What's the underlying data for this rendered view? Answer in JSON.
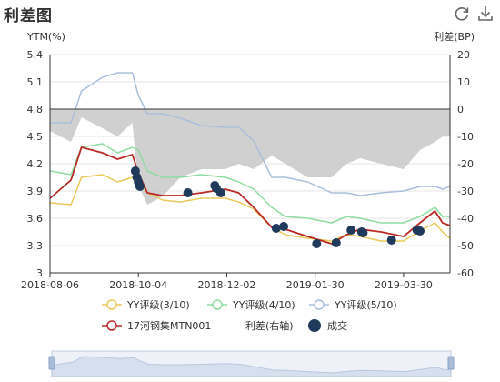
{
  "title": "利差图",
  "toolbar": {
    "refresh_icon": "refresh-icon",
    "download_icon": "download-icon"
  },
  "colors": {
    "yy3": "#e8c95a",
    "yy4": "#8fdca0",
    "yy5": "#aabfdc",
    "bond": "#b92b27",
    "spread": "#c8c8c8",
    "trade": "#1f3a5a"
  },
  "chart_data": {
    "type": "line",
    "title": "",
    "ylabel": "YTM(%)",
    "y2label": "利差(BP)",
    "ylim": [
      3,
      5.4
    ],
    "y2lim": [
      -60,
      20
    ],
    "yticks": [
      "5.4",
      "5.1",
      "4.8",
      "4.5",
      "4.2",
      "3.9",
      "3.6",
      "3.3",
      "3"
    ],
    "y2ticks": [
      "20",
      "10",
      "0",
      "-10",
      "-20",
      "-30",
      "-40",
      "-50",
      "-60"
    ],
    "x_start": "2018-08-06",
    "x_end": "2019-04-30",
    "xticks": [
      "2018-08-06",
      "2018-10-04",
      "2018-12-02",
      "2019-01-30",
      "2019-03-30"
    ],
    "series": [
      {
        "name": "YY评级(3/10)",
        "color": "#e8c95a",
        "points": [
          [
            "2018-08-06",
            3.77
          ],
          [
            "2018-08-20",
            3.75
          ],
          [
            "2018-08-27",
            4.05
          ],
          [
            "2018-09-10",
            4.08
          ],
          [
            "2018-09-20",
            4.0
          ],
          [
            "2018-09-30",
            4.05
          ],
          [
            "2018-10-04",
            4.02
          ],
          [
            "2018-10-10",
            3.88
          ],
          [
            "2018-10-20",
            3.8
          ],
          [
            "2018-11-01",
            3.78
          ],
          [
            "2018-11-15",
            3.82
          ],
          [
            "2018-12-01",
            3.82
          ],
          [
            "2018-12-10",
            3.78
          ],
          [
            "2018-12-20",
            3.7
          ],
          [
            "2019-01-01",
            3.5
          ],
          [
            "2019-01-10",
            3.42
          ],
          [
            "2019-01-25",
            3.38
          ],
          [
            "2019-02-10",
            3.35
          ],
          [
            "2019-02-20",
            3.42
          ],
          [
            "2019-03-01",
            3.4
          ],
          [
            "2019-03-15",
            3.35
          ],
          [
            "2019-03-30",
            3.35
          ],
          [
            "2019-04-10",
            3.46
          ],
          [
            "2019-04-20",
            3.55
          ],
          [
            "2019-04-25",
            3.45
          ],
          [
            "2019-04-30",
            3.38
          ]
        ]
      },
      {
        "name": "YY评级(4/10)",
        "color": "#8fdca0",
        "points": [
          [
            "2018-08-06",
            4.12
          ],
          [
            "2018-08-20",
            4.08
          ],
          [
            "2018-08-27",
            4.38
          ],
          [
            "2018-09-10",
            4.42
          ],
          [
            "2018-09-20",
            4.32
          ],
          [
            "2018-09-30",
            4.38
          ],
          [
            "2018-10-04",
            4.35
          ],
          [
            "2018-10-10",
            4.12
          ],
          [
            "2018-10-20",
            4.05
          ],
          [
            "2018-11-01",
            4.05
          ],
          [
            "2018-11-15",
            4.08
          ],
          [
            "2018-12-01",
            4.05
          ],
          [
            "2018-12-10",
            4.0
          ],
          [
            "2018-12-20",
            3.92
          ],
          [
            "2019-01-01",
            3.72
          ],
          [
            "2019-01-10",
            3.62
          ],
          [
            "2019-01-25",
            3.6
          ],
          [
            "2019-02-10",
            3.55
          ],
          [
            "2019-02-20",
            3.62
          ],
          [
            "2019-03-01",
            3.6
          ],
          [
            "2019-03-15",
            3.55
          ],
          [
            "2019-03-30",
            3.55
          ],
          [
            "2019-04-10",
            3.62
          ],
          [
            "2019-04-20",
            3.72
          ],
          [
            "2019-04-25",
            3.62
          ],
          [
            "2019-04-30",
            3.62
          ]
        ]
      },
      {
        "name": "YY评级(5/10)",
        "color": "#aabfdc",
        "points": [
          [
            "2018-08-06",
            4.65
          ],
          [
            "2018-08-20",
            4.65
          ],
          [
            "2018-08-27",
            5.0
          ],
          [
            "2018-09-10",
            5.15
          ],
          [
            "2018-09-20",
            5.2
          ],
          [
            "2018-09-30",
            5.2
          ],
          [
            "2018-10-04",
            4.95
          ],
          [
            "2018-10-10",
            4.75
          ],
          [
            "2018-10-20",
            4.75
          ],
          [
            "2018-11-01",
            4.7
          ],
          [
            "2018-11-15",
            4.62
          ],
          [
            "2018-12-01",
            4.6
          ],
          [
            "2018-12-10",
            4.6
          ],
          [
            "2018-12-20",
            4.45
          ],
          [
            "2019-01-01",
            4.05
          ],
          [
            "2019-01-10",
            4.05
          ],
          [
            "2019-01-25",
            4.0
          ],
          [
            "2019-02-10",
            3.88
          ],
          [
            "2019-02-20",
            3.88
          ],
          [
            "2019-03-01",
            3.85
          ],
          [
            "2019-03-15",
            3.88
          ],
          [
            "2019-03-30",
            3.9
          ],
          [
            "2019-04-10",
            3.95
          ],
          [
            "2019-04-20",
            3.95
          ],
          [
            "2019-04-25",
            3.92
          ],
          [
            "2019-04-30",
            3.95
          ]
        ]
      },
      {
        "name": "17河钢集MTN001",
        "color": "#b92b27",
        "points": [
          [
            "2018-08-06",
            3.82
          ],
          [
            "2018-08-20",
            4.02
          ],
          [
            "2018-08-27",
            4.38
          ],
          [
            "2018-09-10",
            4.32
          ],
          [
            "2018-09-20",
            4.25
          ],
          [
            "2018-09-30",
            4.3
          ],
          [
            "2018-10-04",
            4.1
          ],
          [
            "2018-10-10",
            3.88
          ],
          [
            "2018-10-20",
            3.85
          ],
          [
            "2018-11-01",
            3.85
          ],
          [
            "2018-11-15",
            3.88
          ],
          [
            "2018-12-01",
            3.92
          ],
          [
            "2018-12-10",
            3.88
          ],
          [
            "2018-12-20",
            3.72
          ],
          [
            "2019-01-01",
            3.5
          ],
          [
            "2019-01-10",
            3.48
          ],
          [
            "2019-01-25",
            3.4
          ],
          [
            "2019-02-10",
            3.32
          ],
          [
            "2019-02-20",
            3.42
          ],
          [
            "2019-03-01",
            3.48
          ],
          [
            "2019-03-15",
            3.45
          ],
          [
            "2019-03-30",
            3.4
          ],
          [
            "2019-04-10",
            3.55
          ],
          [
            "2019-04-20",
            3.68
          ],
          [
            "2019-04-25",
            3.55
          ],
          [
            "2019-04-30",
            3.52
          ]
        ]
      }
    ],
    "spread_series": {
      "name": "利差(右轴)",
      "axis": "right",
      "type": "area",
      "points": [
        [
          "2018-08-06",
          -8
        ],
        [
          "2018-08-20",
          -12
        ],
        [
          "2018-08-27",
          -3
        ],
        [
          "2018-09-10",
          -7
        ],
        [
          "2018-09-20",
          -10
        ],
        [
          "2018-09-30",
          -5
        ],
        [
          "2018-10-04",
          -28
        ],
        [
          "2018-10-10",
          -35
        ],
        [
          "2018-10-20",
          -32
        ],
        [
          "2018-11-01",
          -25
        ],
        [
          "2018-11-15",
          -22
        ],
        [
          "2018-12-01",
          -22
        ],
        [
          "2018-12-10",
          -20
        ],
        [
          "2018-12-20",
          -22
        ],
        [
          "2019-01-01",
          -17
        ],
        [
          "2019-01-10",
          -20
        ],
        [
          "2019-01-25",
          -25
        ],
        [
          "2019-02-10",
          -25
        ],
        [
          "2019-02-20",
          -20
        ],
        [
          "2019-03-01",
          -18
        ],
        [
          "2019-03-15",
          -20
        ],
        [
          "2019-03-30",
          -22
        ],
        [
          "2019-04-10",
          -15
        ],
        [
          "2019-04-20",
          -12
        ],
        [
          "2019-04-25",
          -10
        ],
        [
          "2019-04-30",
          -10
        ]
      ]
    },
    "trades": {
      "name": "成交",
      "points": [
        [
          "2018-10-02",
          4.12
        ],
        [
          "2018-10-03",
          4.05
        ],
        [
          "2018-10-04",
          4.0
        ],
        [
          "2018-10-05",
          3.95
        ],
        [
          "2018-11-06",
          3.88
        ],
        [
          "2018-11-24",
          3.96
        ],
        [
          "2018-11-25",
          3.93
        ],
        [
          "2018-11-28",
          3.88
        ],
        [
          "2019-01-04",
          3.49
        ],
        [
          "2019-01-09",
          3.51
        ],
        [
          "2019-01-31",
          3.32
        ],
        [
          "2019-02-13",
          3.33
        ],
        [
          "2019-02-23",
          3.47
        ],
        [
          "2019-03-02",
          3.45
        ],
        [
          "2019-03-03",
          3.44
        ],
        [
          "2019-03-22",
          3.36
        ],
        [
          "2019-04-08",
          3.47
        ],
        [
          "2019-04-10",
          3.46
        ]
      ]
    },
    "legend": [
      {
        "label": "YY评级(3/10)",
        "kind": "circle-line",
        "color": "#e8c95a"
      },
      {
        "label": "YY评级(4/10)",
        "kind": "circle-line",
        "color": "#8fdca0"
      },
      {
        "label": "YY评级(5/10)",
        "kind": "circle-line",
        "color": "#aabfdc"
      },
      {
        "label": "17河钢集MTN001",
        "kind": "circle-line",
        "color": "#b92b27"
      },
      {
        "label": "利差(右轴)",
        "kind": "none",
        "color": "#c8c8c8"
      },
      {
        "label": "成交",
        "kind": "dot",
        "color": "#1f3a5a"
      }
    ],
    "legend_position": "bottom",
    "data_zoom": {
      "start": 0,
      "end": 100
    }
  }
}
